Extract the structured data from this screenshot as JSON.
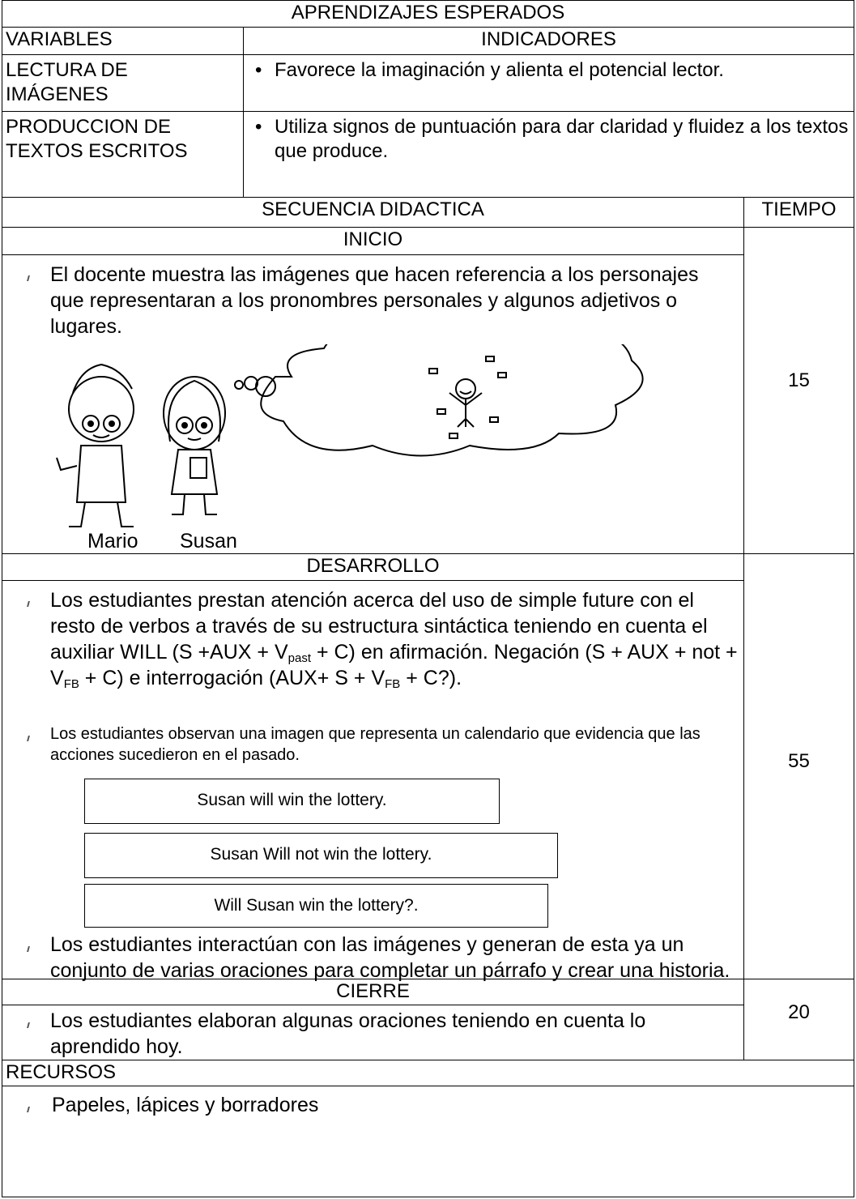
{
  "aprendizajes": {
    "title": "APRENDIZAJES ESPERADOS",
    "headers": [
      "VARIABLES",
      "INDICADORES"
    ],
    "rows": [
      [
        "LECTURA DE IMÁGENES",
        "Favorece la imaginación y alienta el potencial lector."
      ],
      [
        "PRODUCCION DE TEXTOS ESCRITOS",
        "Utiliza signos de puntuación para dar claridad y fluidez a los textos que produce."
      ]
    ]
  },
  "secuencia": {
    "title": "SECUENCIA DIDACTICA",
    "time_header": "TIEMPO",
    "inicio": {
      "title": "INICIO",
      "items": [
        "El docente muestra las imágenes que hacen referencia a los personajes que representaran a los pronombres personales y algunos adjetivos o lugares."
      ],
      "image_labels": [
        "Mario",
        "Susan"
      ],
      "time": 15
    },
    "desarrollo": {
      "title": "DESARROLLO",
      "item_parts": [
        "Los estudiantes prestan atención acerca del uso de simple future con el resto de verbos a través de su estructura sintáctica teniendo en cuenta el auxiliar WILL  (S +AUX + V",
        "past",
        " + C) en afirmación. Negación (S + AUX + not + V",
        "FB",
        " +  C) e interrogación (AUX+ S + V",
        "FB",
        " + C?)."
      ],
      "items": [
        "Los estudiantes observan una imagen que representa un calendario que evidencia que las acciones sucedieron en el pasado.",
        "Los estudiantes interactúan con las imágenes y generan de esta ya un conjunto de varias oraciones para completar un párrafo y crear una historia."
      ],
      "examples": [
        "Susan will win the lottery.",
        "Susan Will not win the lottery.",
        "Will Susan win the lottery?."
      ],
      "time": 55
    },
    "cierre": {
      "title": "CIERRE",
      "items": [
        "Los estudiantes elaboran algunas oraciones teniendo en cuenta lo aprendido hoy."
      ],
      "time": 20
    }
  },
  "recursos": {
    "title": "RECURSOS",
    "items": [
      "Papeles, lápices y borradores"
    ]
  }
}
